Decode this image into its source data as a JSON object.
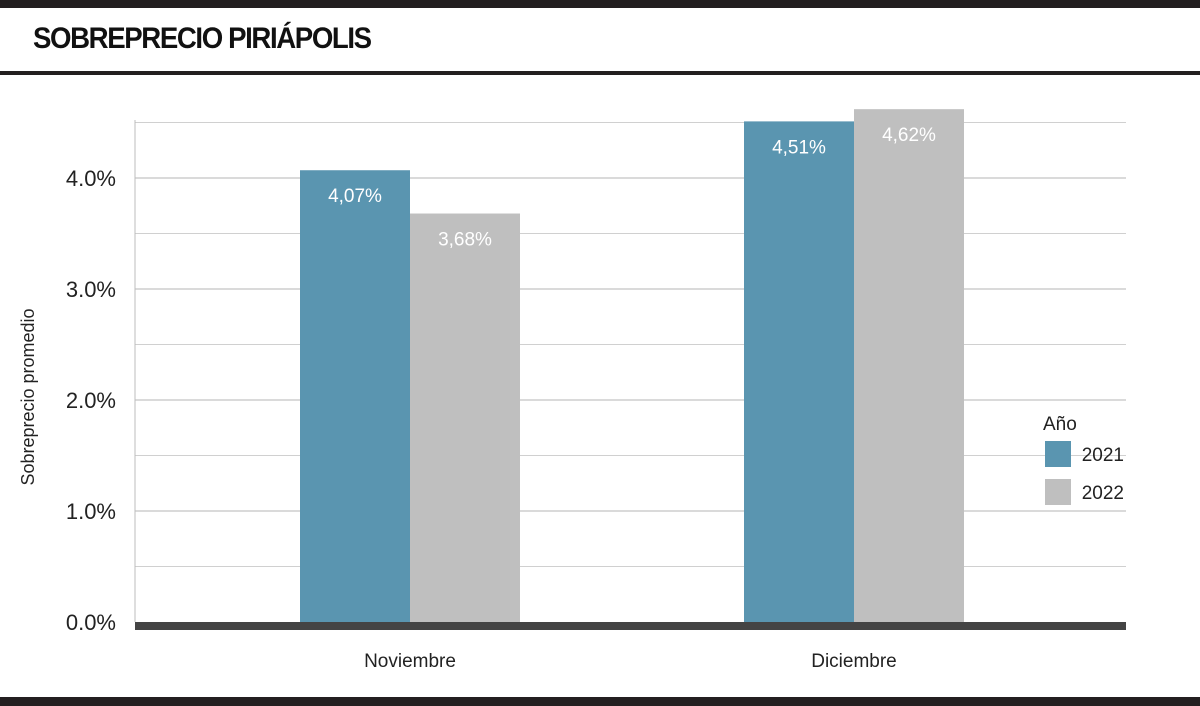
{
  "title": "SOBREPRECIO PIRIÁPOLIS",
  "chart_data": {
    "type": "bar",
    "title": "SOBREPRECIO PIRIÁPOLIS",
    "categories": [
      "Noviembre",
      "Diciembre"
    ],
    "series": [
      {
        "name": "2021",
        "values": [
          4.07,
          4.51
        ],
        "labels": [
          "4,07%",
          "4,51%"
        ],
        "color": "#5a95b0"
      },
      {
        "name": "2022",
        "values": [
          3.68,
          4.62
        ],
        "labels": [
          "3,68%",
          "4,62%"
        ],
        "color": "#bfbfbf"
      }
    ],
    "xlabel": "",
    "ylabel": "Sobreprecio promedio",
    "ylim": [
      0,
      4.5
    ],
    "yticks": [
      0,
      1,
      2,
      3,
      4
    ],
    "ytick_labels": [
      "0.0%",
      "1.0%",
      "2.0%",
      "3.0%",
      "4.0%"
    ],
    "grid": true,
    "legend": {
      "title": "Año",
      "position": "right"
    }
  }
}
